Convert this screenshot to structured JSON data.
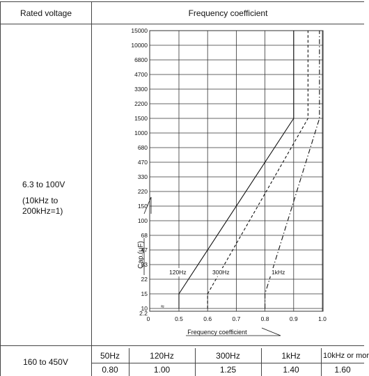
{
  "table": {
    "header_voltage": "Rated voltage",
    "header_coef": "Frequency coefficient",
    "row1_voltage": "6.3 to 100V",
    "row1_note": "(10kHz to 200kHz=1)",
    "row2_voltage": "160 to 450V",
    "row2_freqs": [
      "50Hz",
      "120Hz",
      "300Hz",
      "1kHz",
      "10kHz or mor"
    ],
    "row2_coefs": [
      "0.80",
      "1.00",
      "1.25",
      "1.40",
      "1.60"
    ]
  },
  "chart_data": {
    "type": "line",
    "xlabel": "Frequency coefficient",
    "ylabel": "Cap.(μF)",
    "x_ticks": [
      "0",
      "0.5",
      "0.6",
      "0.7",
      "0.8",
      "0.9",
      "1.0"
    ],
    "y_ticks": [
      "2.2",
      "10",
      "15",
      "22",
      "33",
      "47",
      "68",
      "100",
      "150",
      "220",
      "330",
      "470",
      "680",
      "1000",
      "1500",
      "2200",
      "3300",
      "4700",
      "6800",
      "10000",
      "15000"
    ],
    "axis_break_glyph": "≈",
    "series": [
      {
        "name": "120Hz",
        "style": "solid",
        "points": [
          [
            0.5,
            10
          ],
          [
            0.5,
            15
          ],
          [
            0.9,
            1500
          ],
          [
            0.9,
            15000
          ]
        ]
      },
      {
        "name": "300Hz",
        "style": "dash",
        "points": [
          [
            0.6,
            10
          ],
          [
            0.6,
            15
          ],
          [
            0.95,
            1500
          ],
          [
            0.95,
            15000
          ]
        ]
      },
      {
        "name": "1kHz",
        "style": "dashdot",
        "points": [
          [
            0.8,
            10
          ],
          [
            0.8,
            15
          ],
          [
            0.99,
            1500
          ],
          [
            0.99,
            15000
          ]
        ]
      }
    ]
  }
}
